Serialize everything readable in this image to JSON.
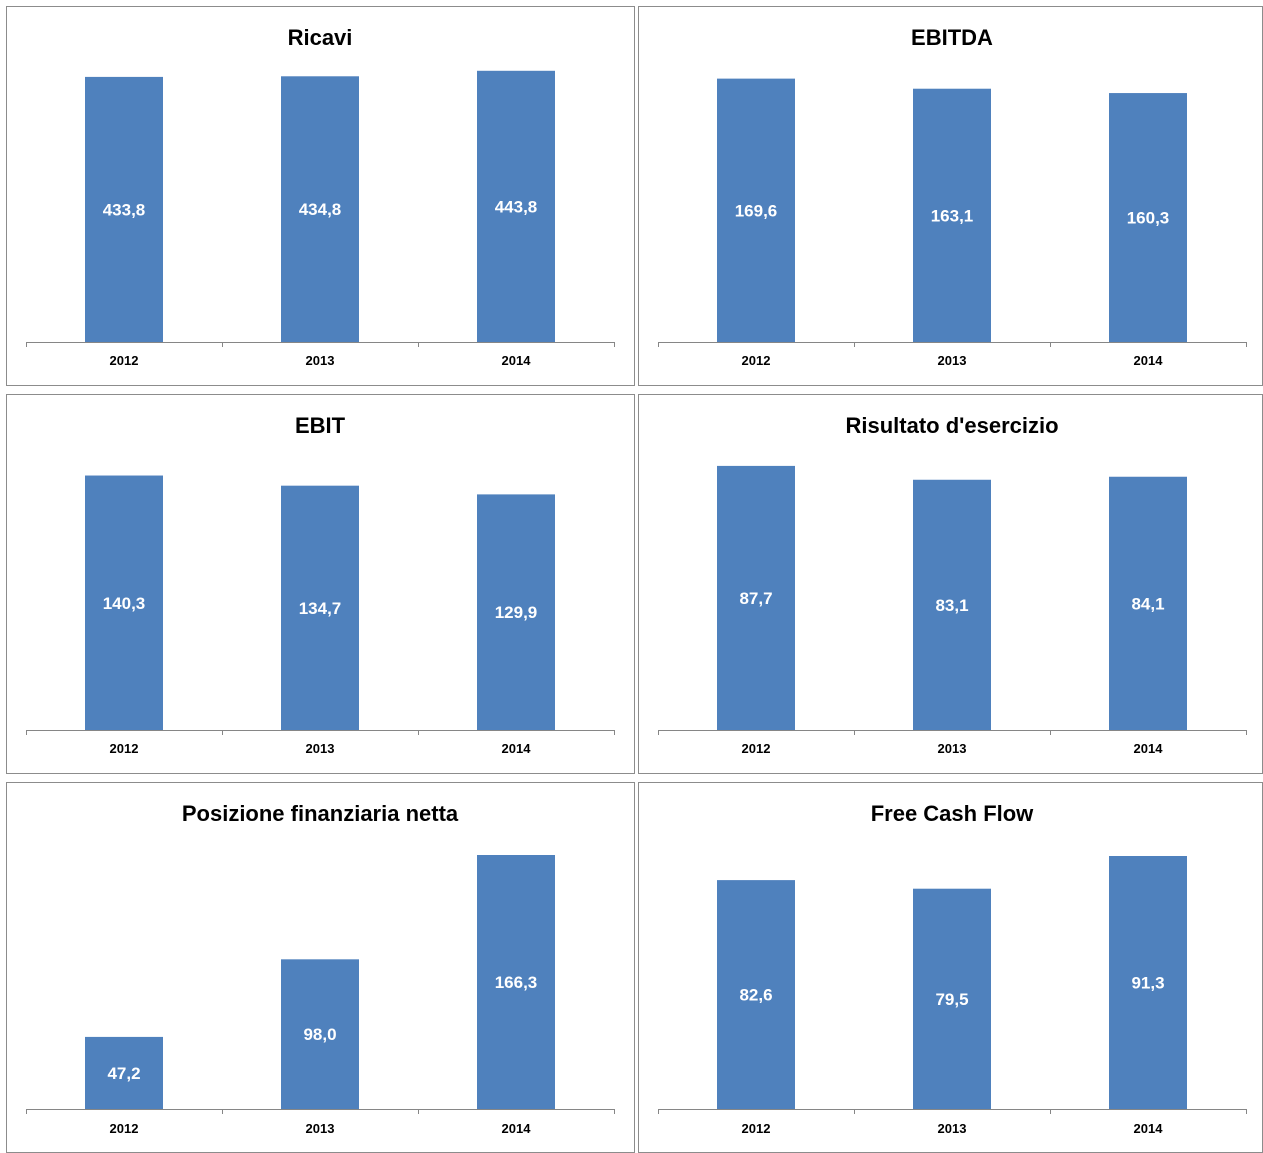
{
  "colors": {
    "bar": "#4f81bd",
    "axis": "#868686"
  },
  "chart_data": [
    {
      "type": "bar",
      "title": "Ricavi",
      "categories": [
        "2012",
        "2013",
        "2014"
      ],
      "values": [
        433.8,
        434.8,
        443.8
      ],
      "labels": [
        "433,8",
        "434,8",
        "443,8"
      ],
      "ylim": [
        0,
        450
      ],
      "grid": false,
      "legend": "none"
    },
    {
      "type": "bar",
      "title": "EBITDA",
      "categories": [
        "2012",
        "2013",
        "2014"
      ],
      "values": [
        169.6,
        163.1,
        160.3
      ],
      "labels": [
        "169,6",
        "163,1",
        "160,3"
      ],
      "ylim": [
        0,
        170
      ],
      "grid": false,
      "legend": "none"
    },
    {
      "type": "bar",
      "title": "EBIT",
      "categories": [
        "2012",
        "2013",
        "2014"
      ],
      "values": [
        140.3,
        134.7,
        129.9
      ],
      "labels": [
        "140,3",
        "134,7",
        "129,9"
      ],
      "ylim": [
        0,
        145
      ],
      "grid": false,
      "legend": "none"
    },
    {
      "type": "bar",
      "title": "Risultato d'esercizio",
      "categories": [
        "2012",
        "2013",
        "2014"
      ],
      "values": [
        87.7,
        83.1,
        84.1
      ],
      "labels": [
        "87,7",
        "83,1",
        "84,1"
      ],
      "ylim": [
        0,
        88
      ],
      "grid": false,
      "legend": "none"
    },
    {
      "type": "bar",
      "title": "Posizione finanziaria netta",
      "categories": [
        "2012",
        "2013",
        "2014"
      ],
      "values": [
        47.2,
        98.0,
        166.3
      ],
      "labels": [
        "47,2",
        "98,0",
        "166,3"
      ],
      "ylim": [
        0,
        166.3
      ],
      "grid": false,
      "legend": "none"
    },
    {
      "type": "bar",
      "title": "Free Cash Flow",
      "categories": [
        "2012",
        "2013",
        "2014"
      ],
      "values": [
        82.6,
        79.5,
        91.3
      ],
      "labels": [
        "82,6",
        "79,5",
        "91,3"
      ],
      "ylim": [
        0,
        91.3
      ],
      "grid": false,
      "legend": "none"
    }
  ]
}
